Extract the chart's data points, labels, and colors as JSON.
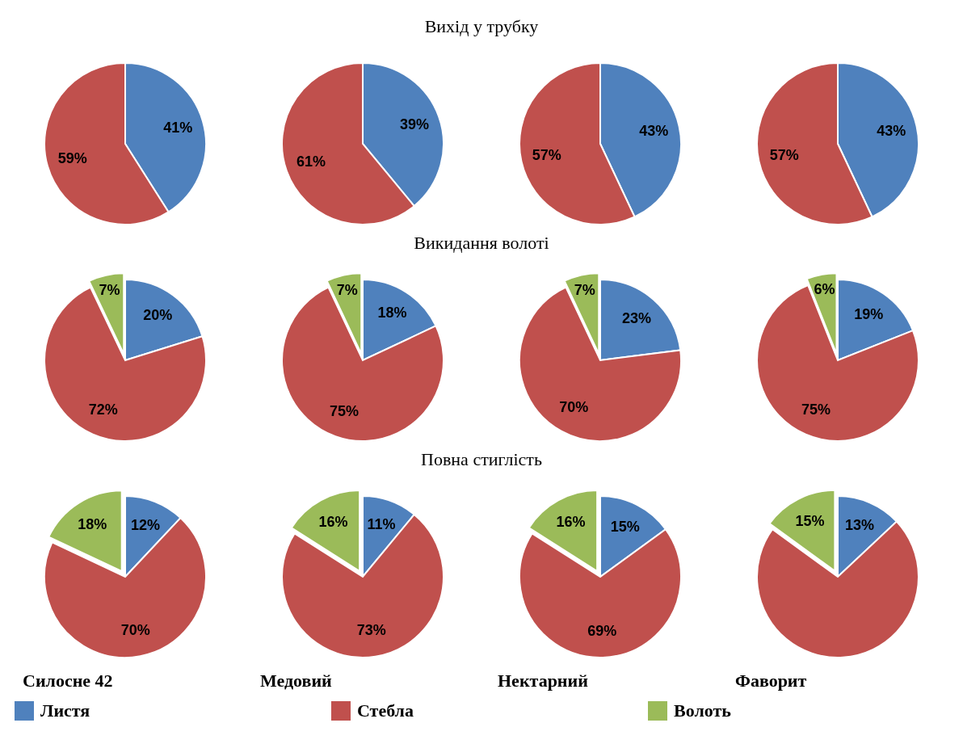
{
  "chart_data": [
    {
      "type": "pie",
      "title": "Вихід у трубку",
      "categories": [
        null,
        null
      ],
      "values": [
        41,
        59
      ],
      "colors": [
        "#4f81bd",
        "#c0504d"
      ],
      "value_labels": [
        "41%",
        "59%"
      ]
    },
    {
      "type": "pie",
      "categories": [
        null,
        null
      ],
      "values": [
        39,
        61
      ],
      "colors": [
        "#4f81bd",
        "#c0504d"
      ],
      "value_labels": [
        "39%",
        "61%"
      ]
    },
    {
      "type": "pie",
      "categories": [
        null,
        null
      ],
      "values": [
        43,
        57
      ],
      "colors": [
        "#4f81bd",
        "#c0504d"
      ],
      "value_labels": [
        "43%",
        "57%"
      ]
    },
    {
      "type": "pie",
      "categories": [
        null,
        null
      ],
      "values": [
        43,
        57
      ],
      "colors": [
        "#4f81bd",
        "#c0504d"
      ],
      "value_labels": [
        "43%",
        "57%"
      ]
    },
    {
      "type": "pie",
      "title": "Викидання волоті",
      "categories": [
        null,
        null,
        null
      ],
      "values": [
        20,
        72,
        7
      ],
      "colors": [
        "#4f81bd",
        "#c0504d",
        "#9bbb59"
      ],
      "value_labels": [
        "20%",
        "72%",
        "7%"
      ]
    },
    {
      "type": "pie",
      "categories": [
        null,
        null,
        null
      ],
      "values": [
        18,
        75,
        7
      ],
      "colors": [
        "#4f81bd",
        "#c0504d",
        "#9bbb59"
      ],
      "value_labels": [
        "18%",
        "75%",
        "7%"
      ]
    },
    {
      "type": "pie",
      "categories": [
        null,
        null,
        null
      ],
      "values": [
        23,
        70,
        7
      ],
      "colors": [
        "#4f81bd",
        "#c0504d",
        "#9bbb59"
      ],
      "value_labels": [
        "23%",
        "70%",
        "7%"
      ]
    },
    {
      "type": "pie",
      "categories": [
        null,
        null,
        null
      ],
      "values": [
        19,
        75,
        6
      ],
      "colors": [
        "#4f81bd",
        "#c0504d",
        "#9bbb59"
      ],
      "value_labels": [
        "19%",
        "75%",
        "6%"
      ]
    },
    {
      "type": "pie",
      "title": "Повна стиглість",
      "xlabel": "Силосне 42",
      "categories": [
        null,
        null,
        null
      ],
      "values": [
        12,
        70,
        18
      ],
      "colors": [
        "#4f81bd",
        "#c0504d",
        "#9bbb59"
      ],
      "value_labels": [
        "12%",
        "70%",
        "18%"
      ]
    },
    {
      "type": "pie",
      "xlabel": "Медовий",
      "categories": [
        null,
        null,
        null
      ],
      "values": [
        11,
        73,
        16
      ],
      "colors": [
        "#4f81bd",
        "#c0504d",
        "#9bbb59"
      ],
      "value_labels": [
        "11%",
        "73%",
        "16%"
      ]
    },
    {
      "type": "pie",
      "xlabel": "Нектарний",
      "categories": [
        null,
        null,
        null
      ],
      "values": [
        15,
        69,
        16
      ],
      "colors": [
        "#4f81bd",
        "#c0504d",
        "#9bbb59"
      ],
      "value_labels": [
        "15%",
        "69%",
        "16%"
      ]
    },
    {
      "type": "pie",
      "xlabel": "Фаворит",
      "categories": [
        "Листя",
        "Стебла",
        "Волоть"
      ],
      "values": [
        13,
        72,
        15
      ],
      "colors": [
        "#4f81bd",
        "#c0504d",
        "#9bbb59"
      ],
      "value_labels": [
        "13%",
        null,
        "15%"
      ],
      "legend": "bottom"
    }
  ]
}
